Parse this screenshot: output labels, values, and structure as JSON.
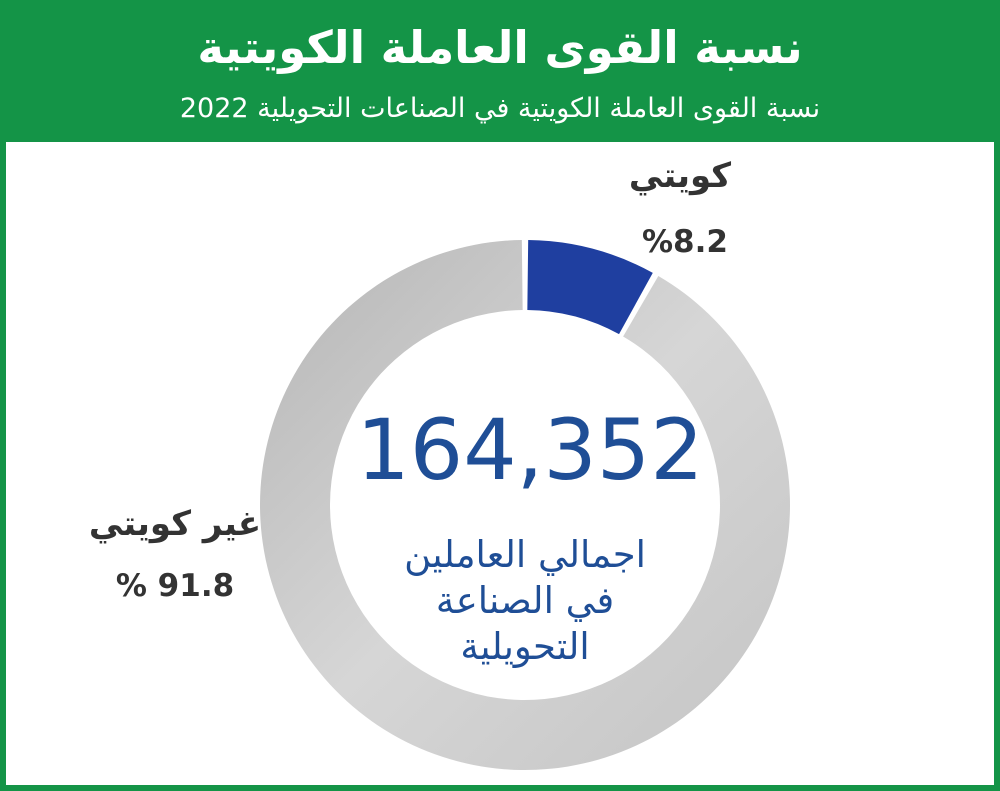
{
  "header": {
    "title": "نسبة القوى العاملة الكويتية",
    "subtitle": "نسبة القوى العاملة الكويتية في الصناعات التحويلية 2022"
  },
  "chart_data": {
    "type": "pie",
    "categories": [
      "كويتي",
      "غير كويتي"
    ],
    "values": [
      8.2,
      91.8
    ],
    "value_labels": [
      "%8.2",
      "% 91.8"
    ],
    "colors": [
      "#1f3fa0",
      "#c9c9c9"
    ],
    "center_total": "164,352",
    "center_caption": [
      "اجمالي العاملين",
      "في الصناعة",
      "التحويلية"
    ]
  },
  "colors": {
    "brand_green": "#149447",
    "center_text": "#1f4e96"
  }
}
